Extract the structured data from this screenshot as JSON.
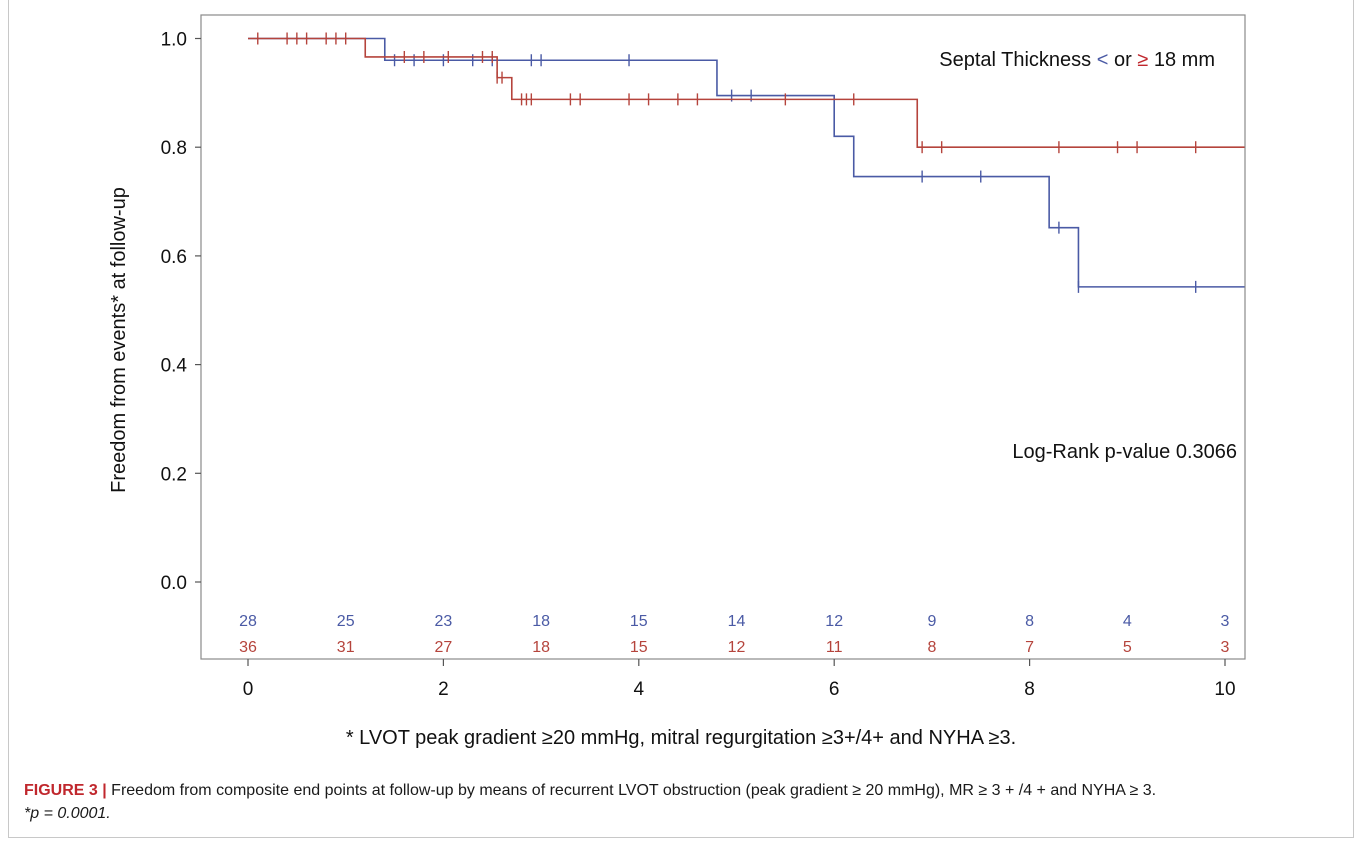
{
  "chart_data": {
    "type": "line",
    "subtype": "kaplan-meier",
    "title": "",
    "xlabel": "",
    "ylabel": "Freedom from events*  at follow-up",
    "xlim": [
      -0.5,
      10.2
    ],
    "ylim": [
      -0.15,
      1.03
    ],
    "x_ticks": [
      0,
      2,
      4,
      6,
      8,
      10
    ],
    "y_ticks": [
      0.0,
      0.2,
      0.4,
      0.6,
      0.8,
      1.0
    ],
    "y_tick_labels": [
      "0.0",
      "0.2",
      "0.4",
      "0.6",
      "0.8",
      "1.0"
    ],
    "grid": false,
    "legend": {
      "text_pre": "Septal Thickness ",
      "symbol_blue": "<",
      "text_mid": " or ",
      "symbol_red": "≥",
      "text_post": " 18 mm",
      "placement": "top-right"
    },
    "annotation": "Log-Rank p-value 0.3066",
    "series": [
      {
        "color": "#4a5aa5",
        "steps": [
          [
            0,
            1.0
          ],
          [
            1.4,
            0.96
          ],
          [
            4.8,
            0.895
          ],
          [
            6.0,
            0.82
          ],
          [
            6.2,
            0.746
          ],
          [
            8.2,
            0.652
          ],
          [
            8.5,
            0.543
          ],
          [
            10.2,
            0.543
          ]
        ],
        "censor_x": [
          1.5,
          1.7,
          2.0,
          2.3,
          2.5,
          2.9,
          3.0,
          3.9,
          4.95,
          5.15,
          6.9,
          7.5,
          8.3,
          8.5,
          9.7
        ],
        "at_risk": [
          28,
          25,
          23,
          18,
          15,
          14,
          12,
          9,
          8,
          4,
          3
        ]
      },
      {
        "color": "#b5443c",
        "steps": [
          [
            0,
            1.0
          ],
          [
            1.2,
            0.966
          ],
          [
            2.55,
            0.928
          ],
          [
            2.7,
            0.888
          ],
          [
            6.85,
            0.8
          ],
          [
            10.2,
            0.8
          ]
        ],
        "censor_x": [
          0.1,
          0.4,
          0.5,
          0.6,
          0.8,
          0.9,
          1.0,
          1.6,
          1.8,
          2.05,
          2.4,
          2.5,
          2.55,
          2.6,
          2.8,
          2.85,
          2.9,
          3.3,
          3.4,
          3.9,
          4.1,
          4.4,
          4.6,
          5.5,
          6.2,
          6.9,
          7.1,
          8.3,
          8.9,
          9.1,
          9.7
        ],
        "at_risk": [
          36,
          31,
          27,
          18,
          15,
          12,
          11,
          8,
          7,
          5,
          3
        ]
      }
    ],
    "at_risk_times": [
      0,
      1,
      2,
      3,
      4,
      5,
      6,
      7,
      8,
      9,
      10
    ]
  },
  "footnote": "* LVOT peak gradient ≥20 mmHg, mitral regurgitation ≥3+/4+ and NYHA ≥3.",
  "caption": {
    "label": "FIGURE 3 |",
    "text": " Freedom from composite end points at follow-up by means of recurrent LVOT obstruction (peak gradient ≥ 20 mmHg), MR ≥ 3 + /4 + and NYHA ≥ 3.",
    "p_note": "*p = 0.0001."
  }
}
